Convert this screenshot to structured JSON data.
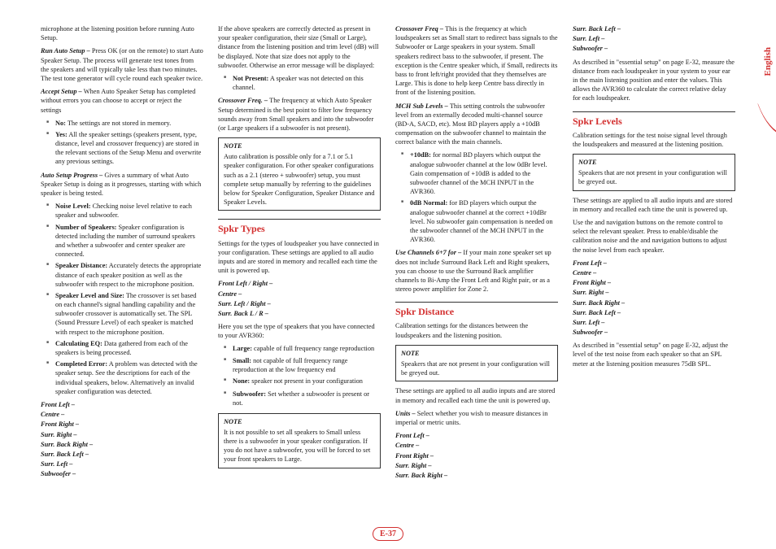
{
  "pageNumber": "E-37",
  "languageTab": "English",
  "colors": {
    "accent": "#d32f2f",
    "text": "#1a1a1a",
    "bullet": "#555"
  },
  "col1": {
    "intro": "microphone at the listening position before running Auto Setup.",
    "runAuto": {
      "lead": "Run Auto Setup – ",
      "text": "Press OK (or       on the remote) to start Auto Speaker Setup. The process will generate test tones from the speakers and will typically take less than two minutes. The test tone generator will cycle round each speaker twice."
    },
    "acceptSetup": {
      "lead": "Accept Setup – ",
      "text": "When Auto Speaker Setup has completed without errors you can choose to accept or reject the settings"
    },
    "acceptBullets": [
      {
        "b": "No:",
        "t": " The settings are not stored in memory."
      },
      {
        "b": "Yes:",
        "t": " All the speaker settings (speakers present, type, distance, level and crossover frequency) are stored in the relevant sections of the Setup Menu and overwrite any previous settings."
      }
    ],
    "autoProgress": {
      "lead": "Auto Setup Progress – ",
      "text": "Gives a summary of what Auto Speaker Setup is doing as it progresses, starting with which speaker is being tested."
    },
    "progressBullets": [
      {
        "b": "Noise Level:",
        "t": " Checking noise level relative to each speaker and subwoofer."
      },
      {
        "b": "Number of Speakers:",
        "t": " Speaker configuration is detected including the number of surround speakers and whether a subwoofer and center speaker are connected."
      },
      {
        "b": "Speaker Distance:",
        "t": " Accurately detects the appropriate distance of each speaker position as well as the subwoofer with respect to the microphone position."
      },
      {
        "b": "Speaker Level and Size:",
        "t": " The crossover is set based on each channel's signal handling capability and the subwoofer crossover is automatically set. The SPL (Sound Pressure Level) of each speaker is matched with respect to the microphone position."
      },
      {
        "b": "Calculating EQ:",
        "t": " Data gathered from each of the speakers is being processed."
      },
      {
        "b": "Completed Error:",
        "t": " A problem was detected with the speaker setup. See the descriptions for each of the individual speakers, below. Alternatively an invalid speaker configuration was detected."
      }
    ]
  },
  "col2": {
    "speakerList1": [
      "Front Left –",
      "Centre –",
      "Front Right –",
      "Surr. Right –",
      "Surr. Back Right –",
      "Surr. Back Left –",
      "Surr. Left –",
      "Subwoofer –"
    ],
    "detectText": "If the above speakers are correctly detected as present in your speaker configuration, their size (Small or Large), distance from the listening position and trim level (dB) will be displayed. Note that size does not apply to the subwoofer. Otherwise an error message will be displayed:",
    "notPresent": {
      "b": "Not Present:",
      "t": " A speaker was not detected on this channel."
    },
    "crossoverFreq": {
      "lead": "Crossover Freq. – ",
      "text": "The frequency at which Auto Speaker Setup determined is the best point to filter low frequency sounds away from Small speakers and into the subwoofer (or Large speakers if a subwoofer is not present)."
    },
    "note1": {
      "label": "NOTE",
      "text": "Auto calibration is possible only for a 7.1 or 5.1 speaker configuration. For other speaker configurations such as a 2.1 (stereo + subwoofer) setup, you must complete setup manually by referring to the guidelines below for Speaker Configuration, Speaker Distance and Speaker Levels."
    },
    "spkrTypesHead": "Spkr Types",
    "spkrTypesIntro": "Settings for the types of loudspeaker you have connected in your configuration. These settings are applied to all audio inputs and are stored in memory and recalled each time the unit is powered up.",
    "spkrTypesList": [
      "Front Left / Right –",
      "Centre –",
      "Surr. Left / Right –",
      "Surr. Back L / R –"
    ],
    "spkrTypesSet": "Here you set the type of speakers that you have connected to your AVR360:",
    "spkrTypesBullets": [
      {
        "b": "Large:",
        "t": " capable of full frequency range reproduction"
      },
      {
        "b": "Small:",
        "t": " not capable of full frequency range reproduction at the low frequency end"
      },
      {
        "b": "None:",
        "t": " speaker not present in your configuration"
      }
    ]
  },
  "col3": {
    "subwoofer": {
      "b": "Subwoofer:",
      "t": " Set whether a subwoofer is present or not."
    },
    "note2": {
      "label": "NOTE",
      "text": "It is not possible to set all speakers to Small unless there is a subwoofer in your speaker configuration. If you do not have a subwoofer, you will be forced to set your front speakers to Large."
    },
    "crossover": {
      "lead": "Crossover Freq – ",
      "text": "This is the frequency at which loudspeakers set as Small start to redirect bass signals to the Subwoofer or Large speakers in your system. Small speakers redirect bass to the subwoofer, if present. The exception is the Centre speaker which, if Small, redirects its bass to front left/right provided that they themselves are Large. This is done to help keep Centre bass directly in front of the listening position."
    },
    "mchSub": {
      "lead": "MCH Sub Levels – ",
      "text": "This setting controls the subwoofer level from an externally decoded multi-channel source (BD-A, SACD, etc). Most BD players apply a +10dB compensation on the subwoofer channel to maintain the correct balance with the main channels."
    },
    "mchBullets": [
      {
        "b": "+10dB:",
        "t": " for normal BD players which output the analogue subwoofer channel at the low 0dBr level. Gain compensation of +10dB is added to the subwoofer channel of the MCH INPUT in the AVR360."
      },
      {
        "b": "0dB Normal:",
        "t": " for BD players which output the analogue subwoofer channel at the correct +10dBr level. No subwoofer gain compensation is needed on the subwoofer channel of the MCH INPUT in the AVR360."
      }
    ],
    "useChannels": {
      "lead": "Use Channels 6+7 for – ",
      "text": "If your main zone speaker set up does not include Surround Back Left and Right speakers, you can choose to use the Surround Back amplifier channels to Bi-Amp the Front Left and Right pair, or as a stereo power amplifier for Zone 2."
    },
    "spkrDistHead": "Spkr Distance",
    "spkrDistIntro": "Calibration settings for the distances between the loudspeakers and the listening position.",
    "note3": {
      "label": "NOTE",
      "text": "Speakers that are not present in your configuration will be greyed out."
    },
    "spkrDistOutro": "These settings are applied to all audio inputs and are stored in memory and recalled each time the unit is powered up."
  },
  "col4": {
    "units": {
      "lead": "Units – ",
      "text": "Select whether you wish to measure distances in imperial or metric units."
    },
    "speakerList2": [
      "Front Left –",
      "Centre –",
      "Front Right –",
      "Surr. Right –",
      "Surr. Back Right –",
      "Surr. Back Left –",
      "Surr. Left –",
      "Subwoofer –"
    ],
    "essentialSetup1": "As described in \"essential setup\" on page E-32, measure the distance from each loudspeaker in your system to your ear in the main listening position and enter the values. This allows the AVR360 to calculate the correct relative delay for each loudspeaker.",
    "spkrLevelsHead": "Spkr Levels",
    "spkrLevelsIntro": "Calibration settings for the test noise signal level through the loudspeakers and measured at the listening position.",
    "note4": {
      "label": "NOTE",
      "text": "Speakers that are not present in your configuration will be greyed out."
    },
    "spkrLevelsSettings": "These settings are applied to all audio inputs and are stored in memory and recalled each time the unit is powered up.",
    "spkrLevelsNav": "Use the      and      navigation buttons on the remote control to select the relevant speaker. Press      to enable/disable the calibration noise and the      and      navigation buttons to adjust the noise level from each speaker.",
    "speakerList3": [
      "Front Left –",
      "Centre –",
      "Front Right –",
      "Surr. Right –",
      "Surr. Back Right –",
      "Surr. Back Left –",
      "Surr. Left –",
      "Subwoofer –"
    ],
    "essentialSetup2": "As described in \"essential setup\" on page E-32, adjust the level of the test noise from each speaker so that an SPL meter at the listening position measures 75dB SPL."
  }
}
